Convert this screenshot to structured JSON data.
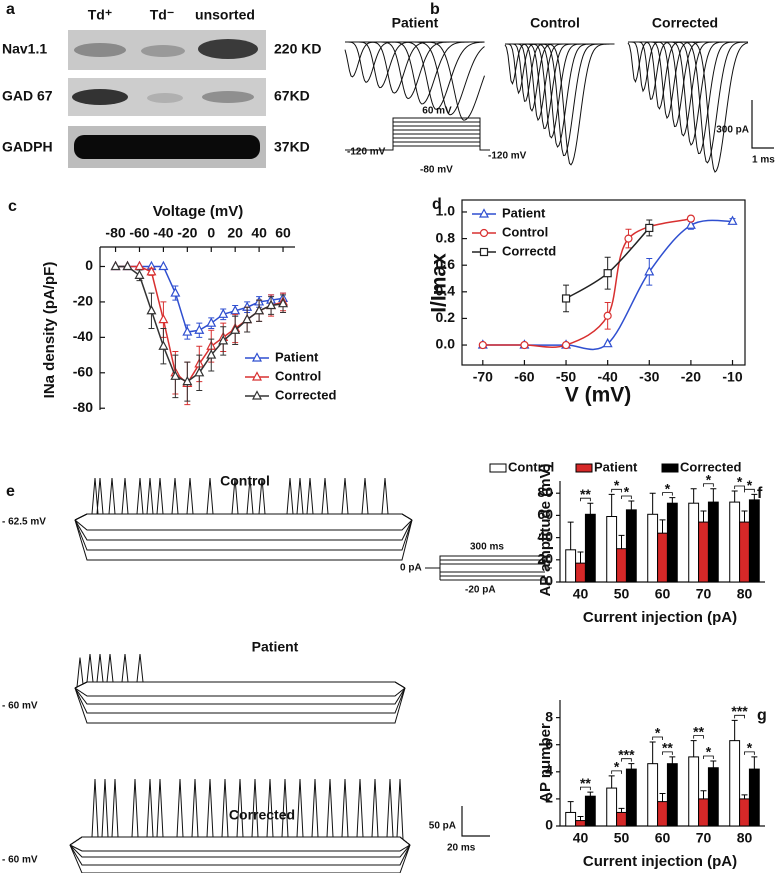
{
  "figure": {
    "panel_a": {
      "label": "a",
      "lanes": [
        "Td⁺",
        "Td⁻",
        "unsorted"
      ],
      "rows": [
        {
          "protein": "Nav1.1",
          "size": "220 KD"
        },
        {
          "protein": "GAD 67",
          "size": "67KD"
        },
        {
          "protein": "GADPH",
          "size": "37KD"
        }
      ]
    },
    "panel_b": {
      "label": "b",
      "titles": [
        "Patient",
        "Control",
        "Corrected"
      ],
      "protocol": {
        "step": "60 mV",
        "hold": "-120 mV",
        "base": "-80 mV"
      },
      "hold_right": "-120 mV",
      "scale": {
        "y": "300 pA",
        "x": "1 ms"
      }
    },
    "panel_e": {
      "label": "e",
      "titles": [
        "Control",
        "Patient",
        "Corrected"
      ],
      "potentials": [
        "- 62.5 mV",
        "- 60 mV",
        "- 60 mV"
      ],
      "protocol": {
        "duration": "300 ms",
        "base": "0 pA",
        "step": "-20 pA"
      },
      "scale": {
        "y": "50 pA",
        "x": "20 ms"
      }
    }
  },
  "chart_data": [
    {
      "type": "line",
      "label": "c",
      "x_label": "Voltage (mV)",
      "y_label": "INa density (pA/pF)",
      "x_axis": "top",
      "legend": "lower right",
      "x": [
        -80,
        -70,
        -60,
        -50,
        -40,
        -30,
        -20,
        -10,
        0,
        10,
        20,
        30,
        40,
        50,
        60
      ],
      "xlim": [
        -93,
        70
      ],
      "xticks": [
        -80,
        -60,
        -40,
        -20,
        0,
        20,
        40,
        60
      ],
      "ylim": [
        -81,
        11
      ],
      "yticks": [
        0,
        -20,
        -40,
        -60,
        -80
      ],
      "series": [
        {
          "name": "Patient",
          "color": "#2f4fd0",
          "marker": "triangle",
          "values": [
            0,
            0,
            0,
            0,
            0,
            -15,
            -37,
            -36,
            -32,
            -27,
            -25,
            -23,
            -20,
            -19,
            -18
          ],
          "errors": [
            0,
            0,
            0,
            0,
            0,
            4,
            4,
            4,
            3,
            3,
            3,
            3,
            3,
            3,
            3
          ]
        },
        {
          "name": "Control",
          "color": "#d83030",
          "marker": "triangle",
          "values": [
            0,
            0,
            0,
            -3,
            -30,
            -60,
            -66,
            -55,
            -45,
            -40,
            -35,
            -30,
            -25,
            -22,
            -20
          ],
          "errors": [
            0,
            0,
            0,
            2,
            10,
            12,
            12,
            10,
            9,
            8,
            8,
            7,
            6,
            6,
            5
          ]
        },
        {
          "name": "Corrected",
          "color": "#333333",
          "marker": "triangle",
          "values": [
            0,
            0,
            -5,
            -25,
            -45,
            -62,
            -65,
            -60,
            -50,
            -42,
            -36,
            -30,
            -25,
            -22,
            -21
          ],
          "errors": [
            0,
            0,
            3,
            10,
            10,
            12,
            11,
            10,
            9,
            8,
            8,
            7,
            6,
            5,
            5
          ]
        }
      ]
    },
    {
      "type": "line",
      "label": "d",
      "x_label": "V (mV)",
      "y_label": "I/Imax",
      "smooth": true,
      "legend": "upper left",
      "xlim": [
        -75,
        -7
      ],
      "xticks": [
        -70,
        -60,
        -50,
        -40,
        -30,
        -20,
        -10
      ],
      "ylim": [
        -0.15,
        1.09
      ],
      "yticks": [
        {
          "value": 0,
          "label": "0.0"
        },
        {
          "value": 0.2,
          "label": "0.2"
        },
        {
          "value": 0.4,
          "label": "0.4"
        },
        {
          "value": 0.6,
          "label": "0.6"
        },
        {
          "value": 0.8,
          "label": "0.8"
        },
        {
          "value": 1,
          "label": "1.0"
        }
      ],
      "series": [
        {
          "name": "Patient",
          "color": "#2f4fd0",
          "marker": "triangle",
          "x": [
            -70,
            -60,
            -50,
            -40,
            -30,
            -20,
            -10
          ],
          "values": [
            0,
            0,
            0,
            0.01,
            0.55,
            0.9,
            0.93
          ],
          "errors": [
            0,
            0,
            0,
            0,
            0.1,
            0.03,
            0.02
          ]
        },
        {
          "name": "Control",
          "color": "#d83030",
          "marker": "circle",
          "x": [
            -70,
            -60,
            -50,
            -40,
            -35,
            -20
          ],
          "values": [
            0,
            0,
            0,
            0.22,
            0.8,
            0.95
          ],
          "errors": [
            0,
            0,
            0,
            0.1,
            0.07,
            0.02
          ]
        },
        {
          "name": "Correctd",
          "color": "#222222",
          "marker": "square",
          "x": [
            -50,
            -40,
            -30
          ],
          "values": [
            0.35,
            0.54,
            0.88
          ],
          "errors": [
            0.1,
            0.12,
            0.06
          ]
        }
      ]
    },
    {
      "type": "bar",
      "label": "f",
      "x_label": "Current injection (pA)",
      "y_label": "AP amplitude (mV)",
      "legend": "top",
      "categories": [
        "40",
        "50",
        "60",
        "70",
        "80"
      ],
      "ylim": [
        0,
        91
      ],
      "yticks": [
        0,
        20,
        40,
        60,
        80
      ],
      "series": [
        {
          "name": "Control",
          "color": "#ffffff",
          "values": [
            29,
            59,
            61,
            71,
            72
          ],
          "errors": [
            25,
            20,
            19,
            13,
            10
          ]
        },
        {
          "name": "Patient",
          "color": "#d62828",
          "values": [
            17,
            30,
            44,
            54,
            54
          ],
          "errors": [
            10,
            12,
            12,
            10,
            10
          ]
        },
        {
          "name": "Corrected",
          "color": "#000000",
          "values": [
            61,
            65,
            71,
            72,
            74
          ],
          "errors": [
            10,
            8,
            5,
            12,
            5
          ]
        }
      ],
      "annotations": [
        {
          "category": "40",
          "text": "**"
        },
        {
          "category": "50",
          "text": "*"
        },
        {
          "category": "50",
          "text": "*"
        },
        {
          "category": "60",
          "text": "*"
        },
        {
          "category": "70",
          "text": "*"
        },
        {
          "category": "80",
          "text": "*"
        },
        {
          "category": "80",
          "text": "*"
        }
      ]
    },
    {
      "type": "bar",
      "label": "g",
      "x_label": "Current injection (pA)",
      "y_label": "AP number",
      "categories": [
        "40",
        "50",
        "60",
        "70",
        "80"
      ],
      "ylim": [
        0,
        9.3
      ],
      "yticks": [
        0,
        2,
        4,
        6,
        8
      ],
      "series": [
        {
          "color": "#ffffff",
          "values": [
            1,
            2.8,
            4.6,
            5.1,
            6.3
          ],
          "errors": [
            0.8,
            0.9,
            1.6,
            1.2,
            1.5
          ]
        },
        {
          "color": "#d62828",
          "values": [
            0.4,
            1,
            1.8,
            2,
            2
          ],
          "errors": [
            0.3,
            0.3,
            0.6,
            0.6,
            0.3
          ]
        },
        {
          "color": "#000000",
          "values": [
            2.2,
            4.2,
            4.6,
            4.3,
            4.2
          ],
          "errors": [
            0.3,
            0.4,
            0.5,
            0.5,
            0.9
          ]
        }
      ],
      "annotations": [
        {
          "category": "40",
          "text": "**"
        },
        {
          "category": "50",
          "text": "*"
        },
        {
          "category": "50",
          "text": "***"
        },
        {
          "category": "60",
          "text": "*"
        },
        {
          "category": "60",
          "text": "**"
        },
        {
          "category": "70",
          "text": "**"
        },
        {
          "category": "70",
          "text": "*"
        },
        {
          "category": "80",
          "text": "***"
        },
        {
          "category": "80",
          "text": "*"
        }
      ]
    }
  ]
}
